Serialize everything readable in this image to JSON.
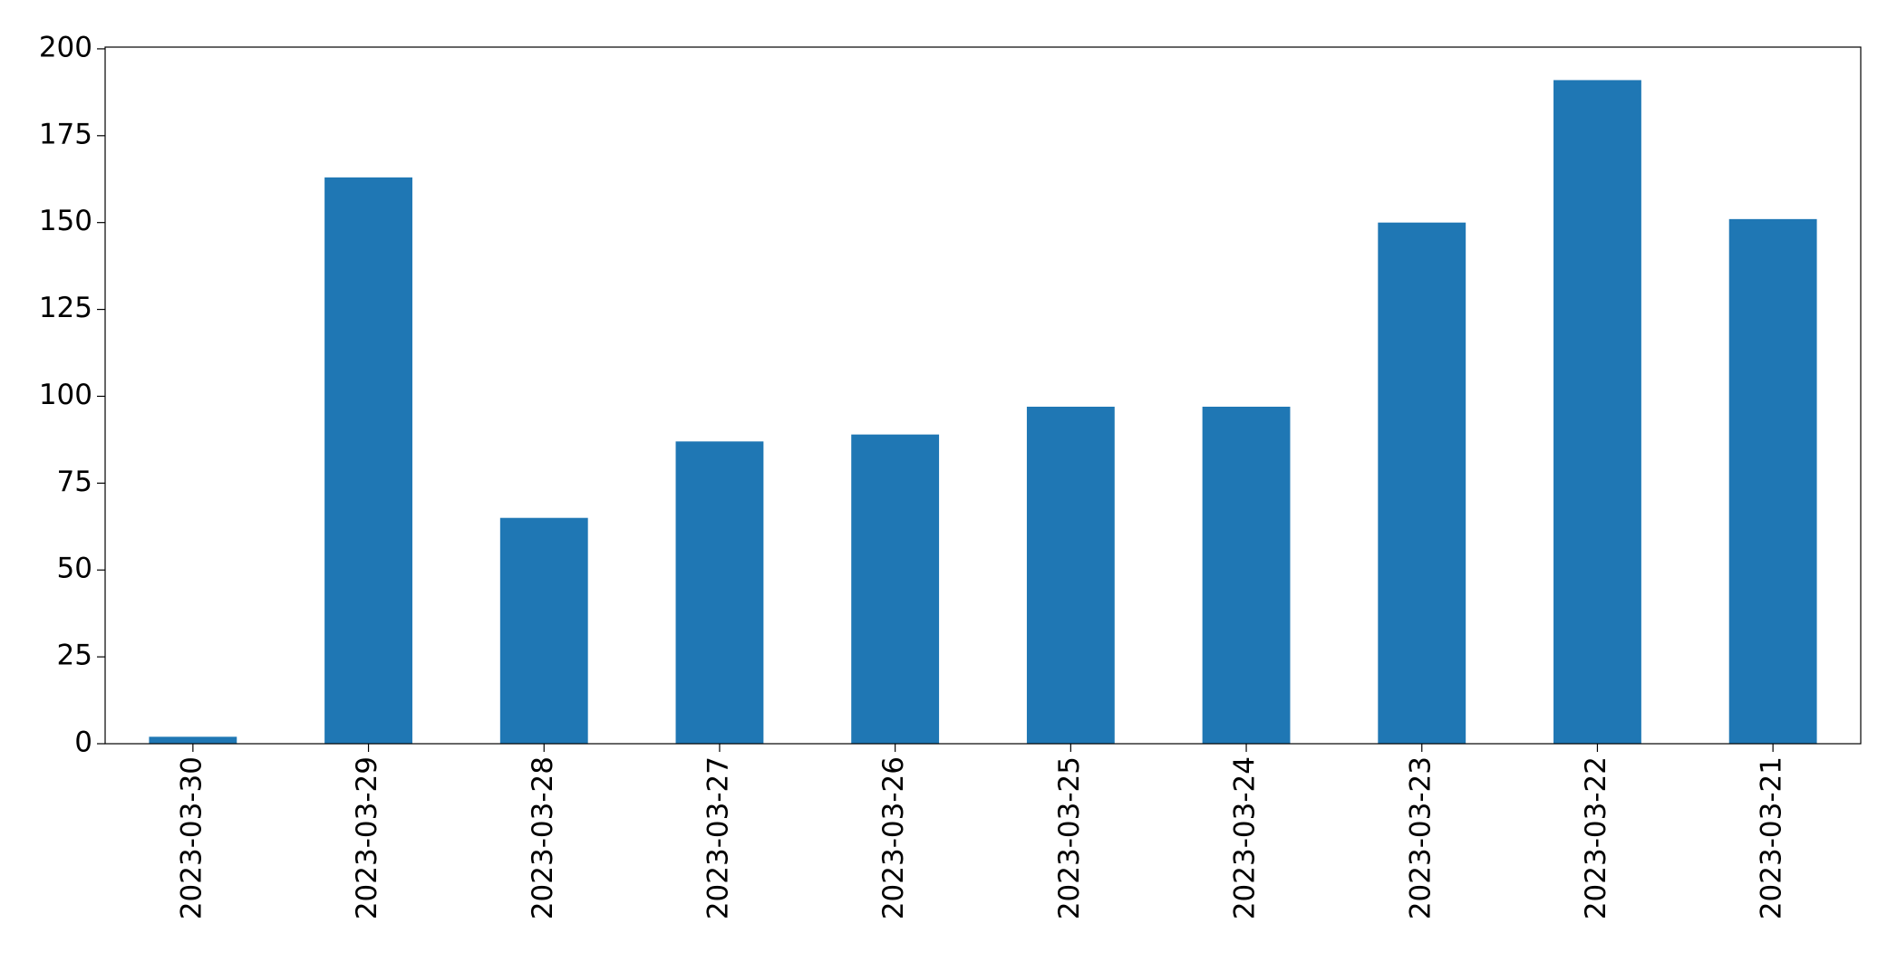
{
  "chart_data": {
    "type": "bar",
    "categories": [
      "2023-03-30",
      "2023-03-29",
      "2023-03-28",
      "2023-03-27",
      "2023-03-26",
      "2023-03-25",
      "2023-03-24",
      "2023-03-23",
      "2023-03-22",
      "2023-03-21"
    ],
    "values": [
      2,
      163,
      65,
      87,
      89,
      97,
      97,
      150,
      191,
      151
    ],
    "color": "#1f77b4",
    "ylim": [
      0,
      200.5
    ],
    "yticks": [
      0,
      25,
      50,
      75,
      100,
      125,
      150,
      175,
      200
    ],
    "grid": false
  }
}
